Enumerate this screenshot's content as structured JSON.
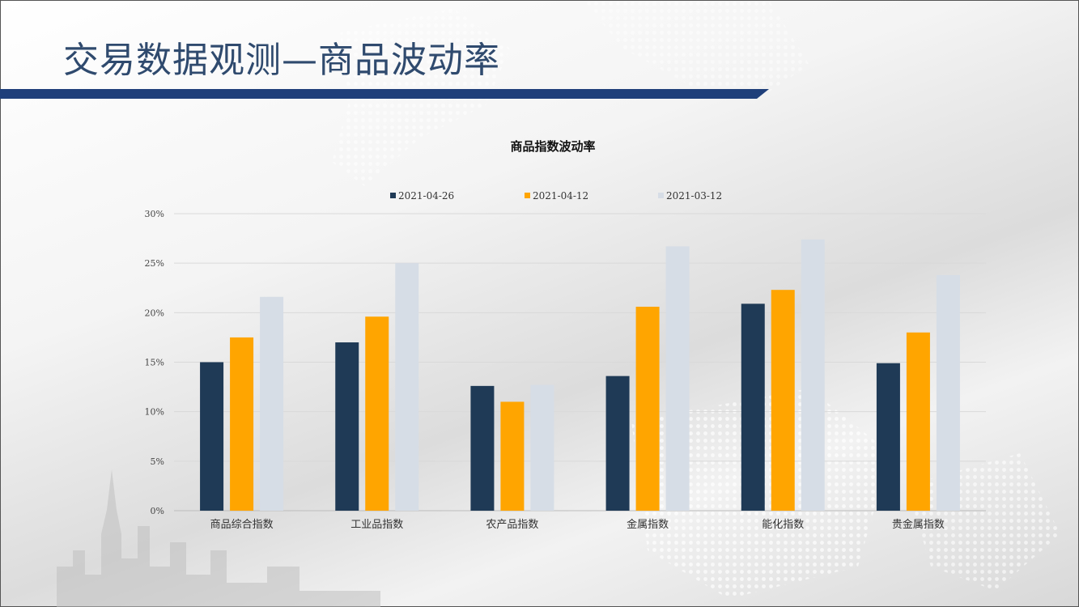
{
  "page": {
    "title": "交易数据观测—商品波动率"
  },
  "colors": {
    "title": "#2f4a6e",
    "title_bar": "#1f3f7a",
    "series": [
      "#1f3a56",
      "#ffa500",
      "#d6dde6"
    ]
  },
  "chart_data": {
    "type": "bar",
    "title": "商品指数波动率",
    "categories": [
      "商品综合指数",
      "工业品指数",
      "农产品指数",
      "金属指数",
      "能化指数",
      "贵金属指数"
    ],
    "series": [
      {
        "name": "2021-04-26",
        "values": [
          15.0,
          17.0,
          12.6,
          13.6,
          20.9,
          14.9
        ]
      },
      {
        "name": "2021-04-12",
        "values": [
          17.5,
          19.6,
          11.0,
          20.6,
          22.3,
          18.0
        ]
      },
      {
        "name": "2021-03-12",
        "values": [
          21.6,
          25.0,
          12.7,
          26.7,
          27.4,
          23.8
        ]
      }
    ],
    "ylim": [
      0,
      30
    ],
    "yticks": [
      "0%",
      "5%",
      "10%",
      "15%",
      "20%",
      "25%",
      "30%"
    ],
    "ytick_values": [
      0,
      5,
      10,
      15,
      20,
      25,
      30
    ],
    "grid": true,
    "legend_position": "top-center",
    "xlabel": "",
    "ylabel": ""
  }
}
